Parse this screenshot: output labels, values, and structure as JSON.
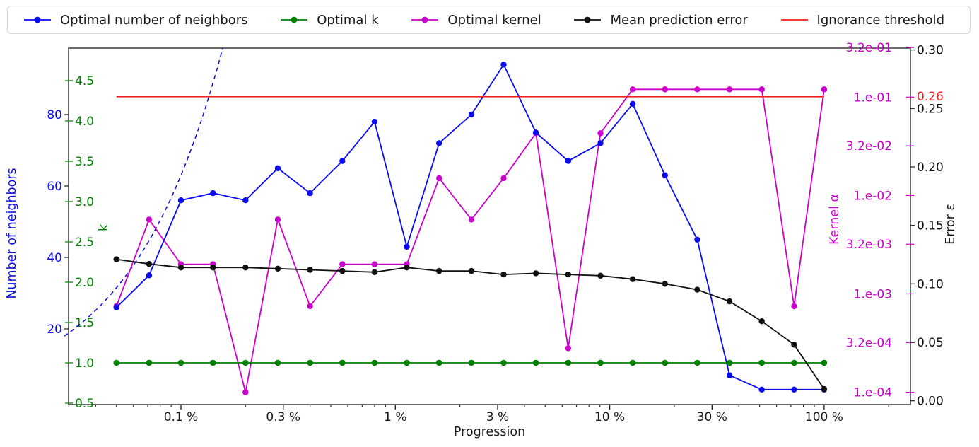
{
  "legend": {
    "items": [
      {
        "label": "Optimal number of neighbors",
        "color": "#0b0bf0",
        "marker": "line-dot"
      },
      {
        "label": "Optimal k",
        "color": "#008000",
        "marker": "line-dot"
      },
      {
        "label": "Optimal kernel",
        "color": "#cc00cc",
        "marker": "line-dot"
      },
      {
        "label": "Mean prediction error",
        "color": "#111111",
        "marker": "line-dot"
      },
      {
        "label": "Ignorance threshold",
        "color": "#f02020",
        "marker": "line"
      }
    ]
  },
  "axes": {
    "x": {
      "title": "Progression",
      "scale": "log",
      "tick_labels": [
        "0.1 %",
        "0.3 %",
        "1 %",
        "3 %",
        "10 %",
        "30 %",
        "100 %"
      ],
      "tick_values": [
        0.1,
        0.3,
        1,
        3,
        10,
        30,
        100
      ],
      "range_percent": [
        0.0285,
        252
      ]
    },
    "left_neighbors": {
      "title": "Number of neighbors",
      "color": "#0b0bf0",
      "tick_values": [
        20,
        40,
        60,
        80
      ],
      "range": [
        0,
        101
      ]
    },
    "left_k": {
      "title": "k",
      "color": "#008000",
      "tick_labels": [
        "0.5",
        "1.0",
        "1.5",
        "2.0",
        "2.5",
        "3.0",
        "3.5",
        "4.0",
        "4.5"
      ],
      "tick_values": [
        0.5,
        1.0,
        1.5,
        2.0,
        2.5,
        3.0,
        3.5,
        4.0,
        4.5
      ]
    },
    "right_kernel": {
      "title": "Kernel α",
      "color": "#cc00cc",
      "scale": "log",
      "tick_labels": [
        "3.2e-01",
        "1.e-01",
        "3.2e-02",
        "1.e-02",
        "3.2e-03",
        "1.e-03",
        "3.2e-04",
        "1.e-04"
      ],
      "tick_values": [
        0.32,
        0.1,
        0.032,
        0.01,
        0.0032,
        0.001,
        0.00032,
        0.0001
      ]
    },
    "right_error": {
      "title": "Error ε",
      "color": "#111111",
      "tick_labels": [
        "0.30",
        "0.25",
        "0.20",
        "0.15",
        "0.10",
        "0.05",
        "0.00"
      ],
      "tick_values": [
        0.3,
        0.25,
        0.2,
        0.15,
        0.1,
        0.05,
        0.0
      ],
      "threshold_label": "0.26"
    }
  },
  "chart_data": {
    "type": "line",
    "title": "",
    "xlabel": "Progression",
    "x_progression_percent": [
      0.05,
      0.071,
      0.1,
      0.141,
      0.2,
      0.283,
      0.4,
      0.566,
      0.8,
      1.131,
      1.6,
      2.263,
      3.2,
      4.525,
      6.4,
      9.051,
      12.8,
      18.102,
      25.6,
      36.204,
      51.2,
      72.408,
      100
    ],
    "series": [
      {
        "name": "Optimal number of neighbors",
        "axis": "neighbors",
        "color": "#0b0bf0",
        "values": [
          26,
          35,
          56,
          58,
          56,
          65,
          58,
          67,
          78,
          43,
          72,
          80,
          94,
          75,
          67,
          72,
          83,
          63,
          45,
          7,
          3,
          3,
          3
        ]
      },
      {
        "name": "Optimal k",
        "axis": "k",
        "color": "#008000",
        "values": [
          1,
          1,
          1,
          1,
          1,
          1,
          1,
          1,
          1,
          1,
          1,
          1,
          1,
          1,
          1,
          1,
          1,
          1,
          1,
          1,
          1,
          1,
          1
        ]
      },
      {
        "name": "Optimal kernel",
        "axis": "kernel_alpha",
        "color": "#cc00cc",
        "values": [
          0.00075,
          0.0057,
          0.002,
          0.002,
          0.0001,
          0.0057,
          0.00075,
          0.002,
          0.002,
          0.002,
          0.015,
          0.0057,
          0.015,
          0.043,
          0.00028,
          0.043,
          0.12,
          0.12,
          0.12,
          0.12,
          0.12,
          0.00075,
          0.12
        ]
      },
      {
        "name": "Mean prediction error",
        "axis": "error",
        "color": "#111111",
        "values": [
          0.121,
          0.117,
          0.114,
          0.114,
          0.114,
          0.113,
          0.112,
          0.111,
          0.11,
          0.114,
          0.111,
          0.111,
          0.108,
          0.109,
          0.108,
          0.107,
          0.104,
          0.1,
          0.095,
          0.085,
          0.068,
          0.048,
          0.01
        ]
      }
    ],
    "threshold": {
      "name": "Ignorance threshold",
      "axis": "error",
      "value": 0.26,
      "color": "#f02020"
    },
    "dashed_reference_curve": {
      "axis": "neighbors",
      "color": "#0b0bf0",
      "style": "dashed",
      "points_percent_vs_neighbors": [
        [
          0.0285,
          18
        ],
        [
          0.05,
          32
        ],
        [
          0.07,
          44
        ],
        [
          0.1,
          63
        ],
        [
          0.13,
          82
        ],
        [
          0.155,
          98
        ]
      ]
    },
    "legend_position": "top",
    "grid": false
  }
}
